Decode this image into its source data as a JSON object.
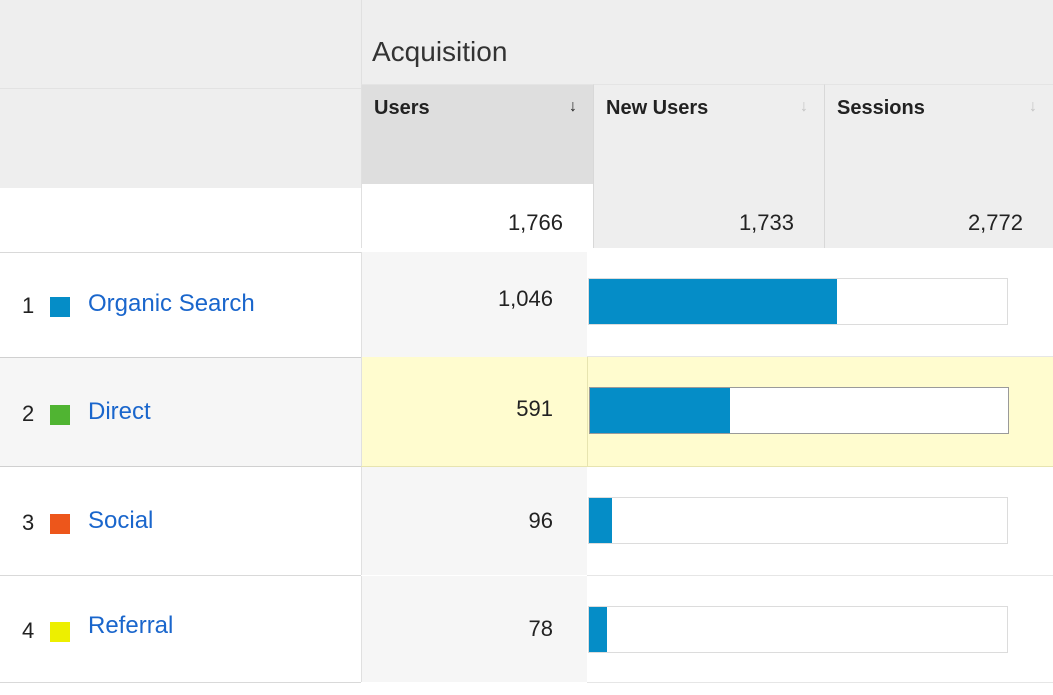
{
  "header": {
    "group_title": "Acquisition",
    "metrics": [
      {
        "label": "Users",
        "sort_icon": "sort-down-arrow-icon",
        "active": true
      },
      {
        "label": "New Users",
        "sort_icon": "sort-down-arrow-icon",
        "active": false
      },
      {
        "label": "Sessions",
        "sort_icon": "sort-down-arrow-icon",
        "active": false
      }
    ]
  },
  "totals": {
    "users": "1,766",
    "new_users": "1,733",
    "sessions": "2,772"
  },
  "rows": [
    {
      "rank": "1",
      "channel": "Organic Search",
      "swatch_color": "#058dc7",
      "users": "1,046",
      "users_value": 1046
    },
    {
      "rank": "2",
      "channel": "Direct",
      "swatch_color": "#50b432",
      "users": "591",
      "users_value": 591
    },
    {
      "rank": "3",
      "channel": "Social",
      "swatch_color": "#ed561b",
      "users": "96",
      "users_value": 96
    },
    {
      "rank": "4",
      "channel": "Referral",
      "swatch_color": "#edef00",
      "users": "78",
      "users_value": 78
    }
  ],
  "bar": {
    "fill_color": "#058dc7",
    "scale_max": 1766
  },
  "sort_arrow_glyph": "↓"
}
